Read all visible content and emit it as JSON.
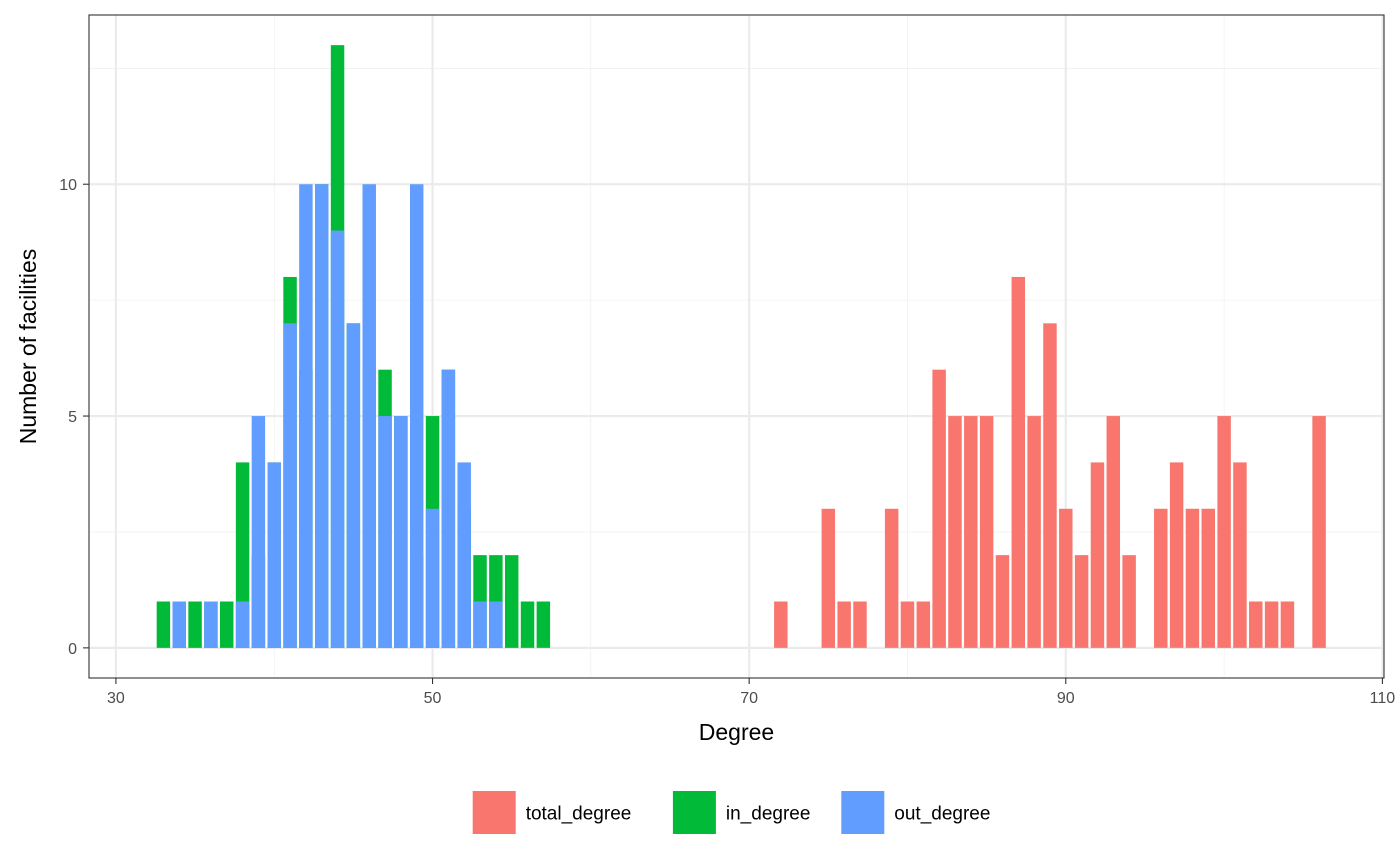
{
  "chart_data": {
    "type": "bar",
    "xlabel": "Degree",
    "ylabel": "Number of facilities",
    "xlim": [
      28.3,
      110.1
    ],
    "ylim": [
      -0.65,
      13.65
    ],
    "x_ticks": [
      30,
      50,
      70,
      90,
      110
    ],
    "x_minor_ticks": [
      40,
      60,
      80,
      100
    ],
    "y_ticks": [
      0,
      5,
      10
    ],
    "y_minor_ticks": [
      2.5,
      7.5,
      12.5
    ],
    "grid": true,
    "legend_position": "bottom",
    "bar_width": 0.85,
    "series": [
      {
        "name": "total_degree",
        "color": "#F8766D",
        "points": [
          [
            72,
            1
          ],
          [
            75,
            3
          ],
          [
            76,
            1
          ],
          [
            77,
            1
          ],
          [
            79,
            3
          ],
          [
            80,
            1
          ],
          [
            81,
            1
          ],
          [
            82,
            6
          ],
          [
            83,
            5
          ],
          [
            84,
            5
          ],
          [
            85,
            5
          ],
          [
            86,
            2
          ],
          [
            87,
            8
          ],
          [
            88,
            5
          ],
          [
            89,
            7
          ],
          [
            90,
            3
          ],
          [
            91,
            2
          ],
          [
            92,
            4
          ],
          [
            93,
            5
          ],
          [
            94,
            2
          ],
          [
            96,
            3
          ],
          [
            97,
            4
          ],
          [
            98,
            3
          ],
          [
            99,
            3
          ],
          [
            100,
            5
          ],
          [
            101,
            4
          ],
          [
            102,
            1
          ],
          [
            103,
            1
          ],
          [
            104,
            1
          ],
          [
            106,
            5
          ]
        ]
      },
      {
        "name": "in_degree",
        "color": "#00BA38",
        "points": [
          [
            33,
            1
          ],
          [
            34,
            1
          ],
          [
            35,
            1
          ],
          [
            36,
            1
          ],
          [
            37,
            1
          ],
          [
            38,
            4
          ],
          [
            39,
            2
          ],
          [
            40,
            4
          ],
          [
            41,
            8
          ],
          [
            42,
            6
          ],
          [
            43,
            10
          ],
          [
            44,
            13
          ],
          [
            45,
            7
          ],
          [
            46,
            6
          ],
          [
            47,
            6
          ],
          [
            48,
            5
          ],
          [
            49,
            2
          ],
          [
            50,
            5
          ],
          [
            51,
            6
          ],
          [
            52,
            3
          ],
          [
            53,
            2
          ],
          [
            54,
            2
          ],
          [
            55,
            2
          ],
          [
            56,
            1
          ],
          [
            57,
            1
          ]
        ]
      },
      {
        "name": "out_degree",
        "color": "#619CFF",
        "points": [
          [
            34,
            1
          ],
          [
            36,
            1
          ],
          [
            38,
            1
          ],
          [
            39,
            5
          ],
          [
            40,
            4
          ],
          [
            41,
            7
          ],
          [
            42,
            10
          ],
          [
            43,
            10
          ],
          [
            44,
            9
          ],
          [
            45,
            7
          ],
          [
            46,
            10
          ],
          [
            47,
            5
          ],
          [
            48,
            5
          ],
          [
            49,
            10
          ],
          [
            50,
            3
          ],
          [
            51,
            6
          ],
          [
            52,
            4
          ],
          [
            53,
            1
          ],
          [
            54,
            1
          ]
        ]
      }
    ]
  }
}
